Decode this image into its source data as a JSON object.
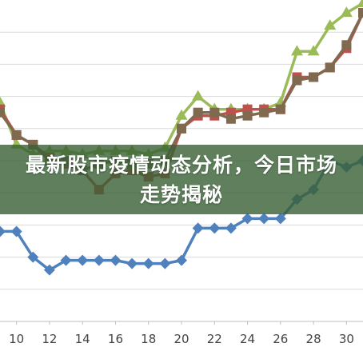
{
  "banner": {
    "title": "最新股市疫情动态分析，今日市场走势揭秘"
  },
  "colors": {
    "green": "#9bbb59",
    "red": "#c0504d",
    "dark": "#7f6a50",
    "blue": "#4f81bd",
    "grid": "#d9d9d9",
    "axis": "#bfbfbf",
    "banner_bg": "#386034"
  },
  "chart_data": {
    "type": "line",
    "x": [
      9,
      10,
      11,
      12,
      13,
      14,
      15,
      16,
      17,
      18,
      19,
      20,
      21,
      22,
      23,
      24,
      25,
      26,
      27,
      28,
      29,
      30,
      31
    ],
    "xticks": [
      10,
      12,
      14,
      16,
      18,
      20,
      22,
      24,
      26,
      28,
      30
    ],
    "xlim": [
      9,
      31
    ],
    "ylim": [
      0,
      10
    ],
    "grid": true,
    "series": [
      {
        "color": "green",
        "marker": "triangle",
        "values": [
          6.8,
          5.5,
          5.2,
          5.3,
          5.3,
          5.2,
          5.3,
          5.3,
          5.3,
          5.2,
          5.4,
          6.4,
          7.0,
          6.6,
          6.6,
          6.6,
          6.6,
          6.8,
          8.4,
          8.4,
          9.2,
          9.6,
          9.9
        ]
      },
      {
        "color": "red",
        "marker": "square",
        "values": [
          6.6,
          5.8,
          5.5,
          5.1,
          4.9,
          4.7,
          4.1,
          4.6,
          4.7,
          4.5,
          4.6,
          6.0,
          6.4,
          6.4,
          6.5,
          6.6,
          6.6,
          6.6,
          7.6,
          7.6,
          7.9,
          8.5,
          9.6
        ]
      },
      {
        "color": "dark",
        "marker": "square",
        "values": [
          6.5,
          5.8,
          5.5,
          5.0,
          5.0,
          4.7,
          4.9,
          5.0,
          4.9,
          4.9,
          5.0,
          6.0,
          6.5,
          6.5,
          6.3,
          6.4,
          6.5,
          6.6,
          7.5,
          7.6,
          7.9,
          8.6,
          9.6
        ]
      },
      {
        "color": "blue",
        "marker": "diamond",
        "values": [
          2.8,
          2.8,
          2.0,
          1.6,
          1.9,
          1.9,
          1.9,
          1.9,
          1.8,
          1.8,
          1.8,
          1.9,
          2.9,
          2.9,
          2.9,
          3.2,
          3.2,
          3.2,
          3.8,
          4.1,
          5.0,
          4.8,
          5.0
        ]
      }
    ]
  }
}
